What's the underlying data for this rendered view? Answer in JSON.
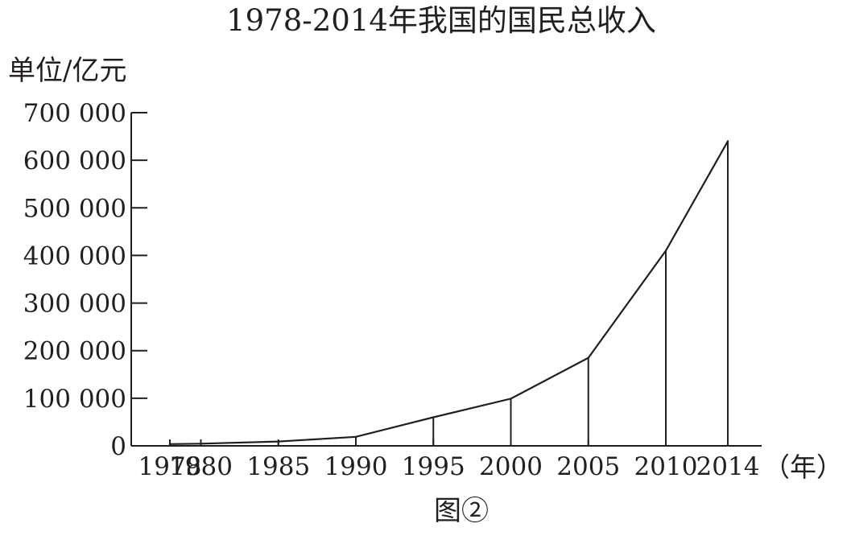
{
  "chart_data": {
    "type": "line",
    "title": "1978-2014年我国的国民总收入",
    "ylabel": "单位/亿元",
    "xlabel": "（年）",
    "caption": "图②",
    "categories": [
      "1978",
      "1980",
      "1985",
      "1990",
      "1995",
      "2000",
      "2005",
      "2010",
      "2014"
    ],
    "values": [
      3650,
      4600,
      9100,
      18900,
      60000,
      99000,
      185000,
      410000,
      640000
    ],
    "y_ticks": [
      "0",
      "100 000",
      "200 000",
      "300 000",
      "400 000",
      "500 000",
      "600 000",
      "700 000"
    ],
    "ylim": [
      0,
      700000
    ],
    "grid": false,
    "legend": "none",
    "line_color": "#231f20",
    "drop_lines": true
  }
}
